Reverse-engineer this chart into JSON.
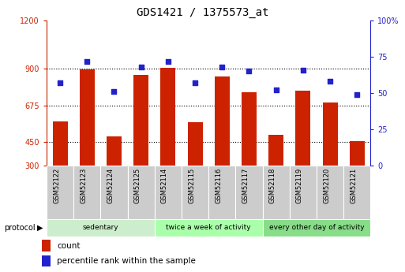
{
  "title": "GDS1421 / 1375573_at",
  "samples": [
    "GSM52122",
    "GSM52123",
    "GSM52124",
    "GSM52125",
    "GSM52114",
    "GSM52115",
    "GSM52116",
    "GSM52117",
    "GSM52118",
    "GSM52119",
    "GSM52120",
    "GSM52121"
  ],
  "counts": [
    575,
    895,
    485,
    865,
    905,
    570,
    855,
    755,
    490,
    765,
    690,
    455
  ],
  "percentiles": [
    57,
    72,
    51,
    68,
    72,
    57,
    68,
    65,
    52,
    66,
    58,
    49
  ],
  "ylim_left": [
    300,
    1200
  ],
  "ylim_right": [
    0,
    100
  ],
  "yticks_left": [
    300,
    450,
    675,
    900,
    1200
  ],
  "yticks_right": [
    0,
    25,
    50,
    75,
    100
  ],
  "bar_color": "#cc2200",
  "dot_color": "#2222cc",
  "groups": [
    {
      "label": "sedentary",
      "start": 0,
      "end": 4,
      "color": "#cceecc"
    },
    {
      "label": "twice a week of activity",
      "start": 4,
      "end": 8,
      "color": "#aaffaa"
    },
    {
      "label": "every other day of activity",
      "start": 8,
      "end": 12,
      "color": "#88dd88"
    }
  ],
  "xlabel_bar_bg": "#cccccc",
  "protocol_label": "protocol",
  "legend_count_label": "count",
  "legend_pct_label": "percentile rank within the sample",
  "title_fontsize": 10,
  "tick_fontsize": 7,
  "label_fontsize": 7,
  "axis_left_color": "#cc2200",
  "axis_right_color": "#2222cc",
  "fig_width": 5.13,
  "fig_height": 3.45,
  "fig_dpi": 100
}
